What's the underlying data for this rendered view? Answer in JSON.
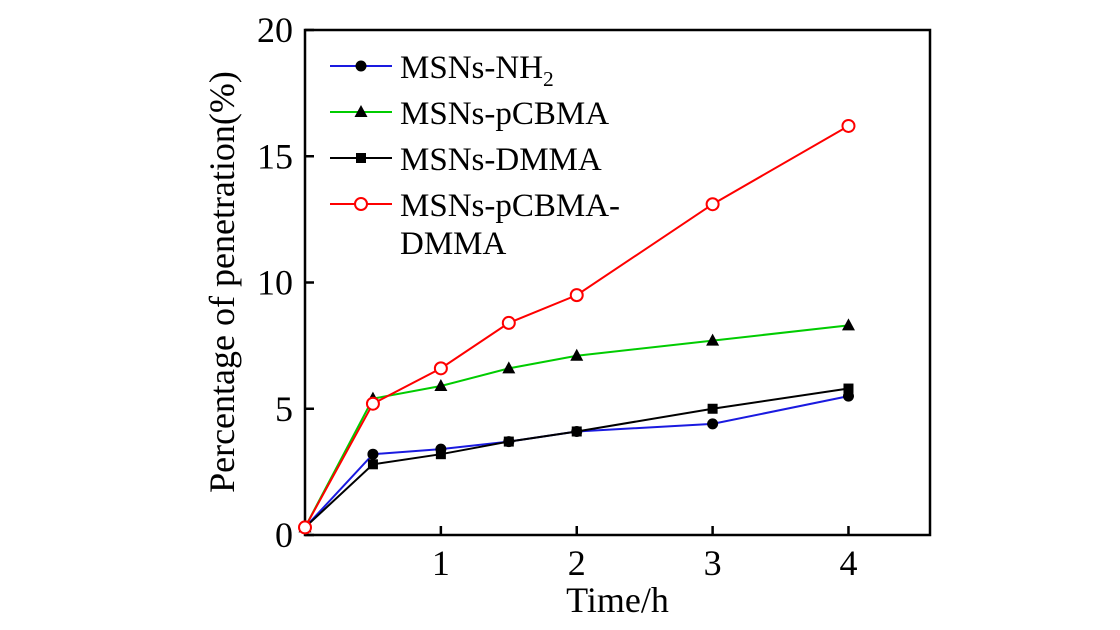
{
  "chart_data": {
    "type": "line",
    "title": "",
    "xlabel": "Time/h",
    "ylabel": "Percentage of penetration(%)",
    "xlim": [
      0,
      4.6
    ],
    "ylim": [
      0,
      20
    ],
    "xticks": [
      1,
      2,
      3,
      4
    ],
    "yticks": [
      0,
      5,
      10,
      15,
      20
    ],
    "grid": false,
    "legend_position": "top-left",
    "x": [
      0,
      0.5,
      1,
      1.5,
      2,
      3,
      4
    ],
    "series": [
      {
        "name": "MSNs-NH₂",
        "legend_lines": [
          "MSNs-NH₂"
        ],
        "color": "#1a1ae0",
        "marker": "circle-filled",
        "marker_color": "#000000",
        "values": [
          0.3,
          3.2,
          3.4,
          3.7,
          4.1,
          4.4,
          5.5
        ]
      },
      {
        "name": "MSNs-pCBMA",
        "legend_lines": [
          "MSNs-pCBMA"
        ],
        "color": "#00cc00",
        "marker": "triangle-filled",
        "marker_color": "#000000",
        "values": [
          0.3,
          5.4,
          5.9,
          6.6,
          7.1,
          7.7,
          8.3
        ]
      },
      {
        "name": "MSNs-DMMA",
        "legend_lines": [
          "MSNs-DMMA"
        ],
        "color": "#000000",
        "marker": "square-filled",
        "marker_color": "#000000",
        "values": [
          0.3,
          2.8,
          3.2,
          3.7,
          4.1,
          5.0,
          5.8
        ]
      },
      {
        "name": "MSNs-pCBMA-DMMA",
        "legend_lines": [
          "MSNs-pCBMA-",
          "DMMA"
        ],
        "color": "#fe0000",
        "marker": "circle-open",
        "marker_color": "#fe0000",
        "values": [
          0.3,
          5.2,
          6.6,
          8.4,
          9.5,
          13.1,
          16.2
        ]
      }
    ]
  }
}
